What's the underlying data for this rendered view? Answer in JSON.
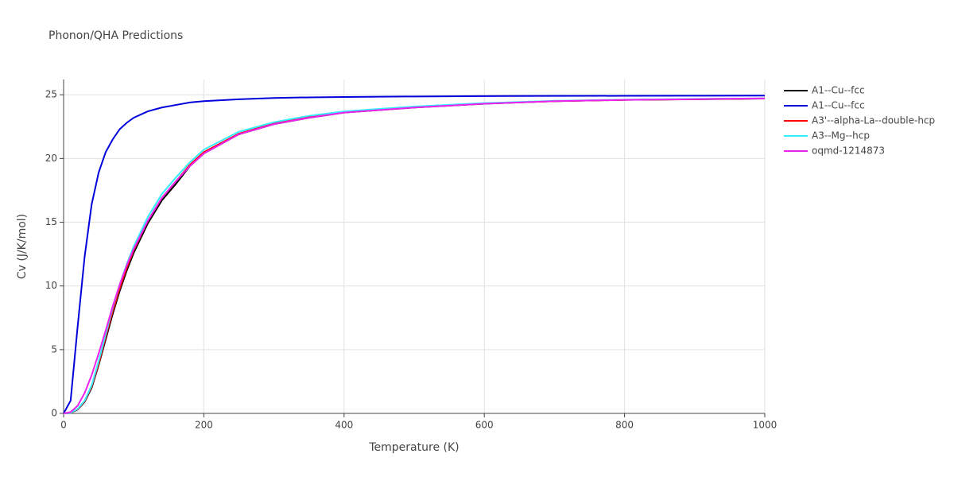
{
  "chart_data": {
    "type": "line",
    "title": "Phonon/QHA Predictions",
    "x_label": "Temperature (K)",
    "y_label": "Cv (J/K/mol)",
    "x": [
      0,
      10,
      20,
      30,
      40,
      50,
      60,
      70,
      80,
      90,
      100,
      120,
      140,
      160,
      180,
      200,
      250,
      300,
      350,
      400,
      500,
      600,
      700,
      800,
      900,
      1000
    ],
    "series": [
      {
        "name": "A1--Cu--fcc",
        "color": "#000000",
        "values": [
          0,
          0.02,
          0.3,
          0.9,
          2.0,
          3.8,
          5.8,
          7.8,
          9.6,
          11.2,
          12.6,
          14.9,
          16.7,
          18.0,
          19.4,
          20.4,
          21.9,
          22.7,
          23.2,
          23.6,
          24.0,
          24.3,
          24.5,
          24.6,
          24.65,
          24.7
        ]
      },
      {
        "name": "A1--Cu--fcc",
        "color": "#0000dd",
        "values": [
          0,
          1.0,
          6.8,
          12.3,
          16.4,
          18.9,
          20.5,
          21.5,
          22.3,
          22.8,
          23.2,
          23.7,
          24.0,
          24.2,
          24.4,
          24.5,
          24.65,
          24.75,
          24.8,
          24.83,
          24.87,
          24.9,
          24.91,
          24.92,
          24.93,
          24.94
        ]
      },
      {
        "name": "A3'--alpha-La--double-hcp",
        "color": "#ff0000",
        "values": [
          0,
          0.02,
          0.32,
          0.95,
          2.1,
          3.9,
          6.0,
          8.0,
          9.8,
          11.4,
          12.8,
          15.1,
          16.9,
          18.2,
          19.5,
          20.5,
          21.95,
          22.75,
          23.25,
          23.62,
          24.02,
          24.32,
          24.5,
          24.6,
          24.66,
          24.71
        ]
      },
      {
        "name": "A3--Mg--hcp",
        "color": "#33eeff",
        "values": [
          0,
          0.03,
          0.35,
          1.0,
          2.2,
          4.1,
          6.2,
          8.3,
          10.1,
          11.7,
          13.1,
          15.4,
          17.2,
          18.5,
          19.7,
          20.7,
          22.1,
          22.85,
          23.35,
          23.7,
          24.08,
          24.35,
          24.52,
          24.62,
          24.68,
          24.72
        ]
      },
      {
        "name": "oqmd-1214873",
        "color": "#ee22ee",
        "values": [
          0,
          0.1,
          0.6,
          1.6,
          3.0,
          4.7,
          6.5,
          8.4,
          10.1,
          11.6,
          12.9,
          15.1,
          16.9,
          18.2,
          19.4,
          20.4,
          21.9,
          22.7,
          23.2,
          23.6,
          24.0,
          24.3,
          24.5,
          24.6,
          24.66,
          24.72
        ]
      }
    ],
    "xlim": [
      0,
      1000
    ],
    "ylim": [
      0,
      26.2
    ],
    "xticks": [
      0,
      200,
      400,
      600,
      800,
      1000
    ],
    "yticks": [
      0,
      5,
      10,
      15,
      20,
      25
    ],
    "grid": true,
    "legend_position": "right"
  }
}
